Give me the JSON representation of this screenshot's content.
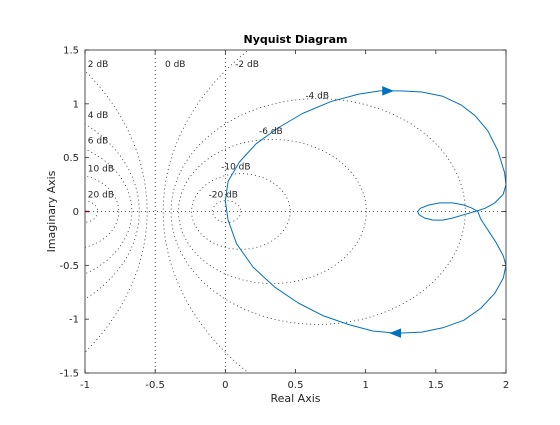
{
  "chart_data": {
    "type": "line",
    "title": "Nyquist Diagram",
    "xlabel": "Real Axis",
    "ylabel": "Imaginary Axis",
    "xlim": [
      -1,
      2
    ],
    "ylim": [
      -1.5,
      1.5
    ],
    "xticks": [
      -1,
      -0.5,
      0,
      0.5,
      1,
      1.5,
      2
    ],
    "yticks": [
      -1.5,
      -1,
      -0.5,
      0,
      0.5,
      1,
      1.5
    ],
    "xtick_labels": [
      "-1",
      "-0.5",
      "0",
      "0.5",
      "1",
      "1.5",
      "2"
    ],
    "ytick_labels": [
      "-1.5",
      "-1",
      "-0.5",
      "0",
      "0.5",
      "1",
      "1.5"
    ],
    "grid": "M-circles (constant closed-loop gain contours)",
    "grid_labels": [
      {
        "text": "2 dB",
        "x": -0.98,
        "y": 1.34
      },
      {
        "text": "4 dB",
        "x": -0.98,
        "y": 0.87
      },
      {
        "text": "6 dB",
        "x": -0.98,
        "y": 0.63
      },
      {
        "text": "10 dB",
        "x": -0.98,
        "y": 0.37
      },
      {
        "text": "20 dB",
        "x": -0.98,
        "y": 0.13
      },
      {
        "text": "0 dB",
        "x": -0.43,
        "y": 1.34
      },
      {
        "text": "-2 dB",
        "x": 0.07,
        "y": 1.34
      },
      {
        "text": "-4 dB",
        "x": 0.57,
        "y": 1.05
      },
      {
        "text": "-6 dB",
        "x": 0.24,
        "y": 0.72
      },
      {
        "text": "-10 dB",
        "x": -0.03,
        "y": 0.39
      },
      {
        "text": "-20 dB",
        "x": -0.12,
        "y": 0.13
      }
    ],
    "m_circles_db": [
      20,
      10,
      6,
      4,
      2,
      0,
      -2,
      -4,
      -6,
      -10,
      -20
    ],
    "critical_point": {
      "x": -1,
      "y": 0,
      "color": "#ff0000"
    },
    "series": [
      {
        "color": "#0072bd",
        "x": [
          1.8,
          1.82,
          1.87,
          1.93,
          1.98,
          2.0,
          1.98,
          1.92,
          1.82,
          1.7,
          1.55,
          1.4,
          1.22,
          1.05,
          0.88,
          0.7,
          0.52,
          0.35,
          0.2,
          0.08,
          0.02,
          0.0,
          0.02,
          0.1,
          0.22,
          0.38,
          0.55,
          0.75,
          0.95,
          1.1,
          1.25,
          1.4,
          1.55,
          1.68,
          1.78,
          1.87,
          1.94,
          1.99,
          2.0,
          1.98,
          1.92,
          1.85,
          1.78,
          1.7,
          1.62,
          1.55,
          1.48,
          1.42,
          1.38,
          1.37,
          1.39,
          1.45,
          1.53,
          1.62,
          1.7,
          1.76,
          1.8
        ],
        "y": [
          0.0,
          -0.07,
          -0.17,
          -0.29,
          -0.41,
          -0.5,
          -0.62,
          -0.76,
          -0.9,
          -1.01,
          -1.08,
          -1.12,
          -1.13,
          -1.11,
          -1.05,
          -0.97,
          -0.85,
          -0.7,
          -0.52,
          -0.3,
          -0.08,
          0.1,
          0.28,
          0.46,
          0.63,
          0.78,
          0.91,
          1.02,
          1.09,
          1.12,
          1.12,
          1.11,
          1.07,
          0.99,
          0.89,
          0.75,
          0.57,
          0.36,
          0.25,
          0.16,
          0.08,
          0.03,
          0.0,
          -0.03,
          -0.06,
          -0.08,
          -0.08,
          -0.06,
          -0.03,
          0.0,
          0.03,
          0.06,
          0.08,
          0.08,
          0.06,
          0.03,
          0.0
        ],
        "arrows": [
          {
            "x": 1.15,
            "y": 1.12,
            "direction": "right"
          },
          {
            "x": 1.22,
            "y": -1.13,
            "direction": "left"
          }
        ]
      }
    ]
  }
}
